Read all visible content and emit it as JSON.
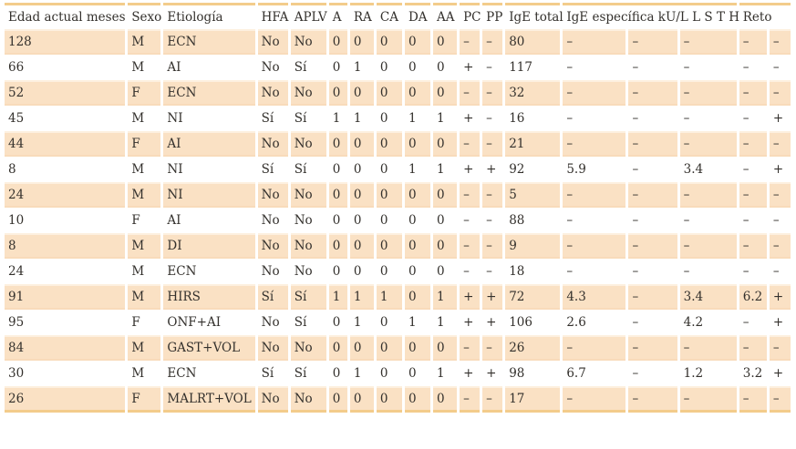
{
  "colors": {
    "background": "#ffffff",
    "text": "#33302c",
    "stripe": "#fae1c4",
    "stripe-border-top": "#fdf0df",
    "stripe-border-bottom": "#f8dbba",
    "table-border": "#f3cc8b"
  },
  "table": {
    "columns": [
      {
        "label": "Edad actual meses",
        "span": 1
      },
      {
        "label": "Sexo",
        "span": 1
      },
      {
        "label": "Etiología",
        "span": 1
      },
      {
        "label": "HFA",
        "span": 1
      },
      {
        "label": "APLV",
        "span": 1
      },
      {
        "label": "A",
        "span": 1
      },
      {
        "label": "RA",
        "span": 1
      },
      {
        "label": "CA",
        "span": 1
      },
      {
        "label": "DA",
        "span": 1
      },
      {
        "label": "AA",
        "span": 1
      },
      {
        "label": "PC",
        "span": 1
      },
      {
        "label": "PP",
        "span": 1
      },
      {
        "label": "IgE total",
        "span": 1
      },
      {
        "label": "IgE específica kU/L L S T H",
        "span": 3
      },
      {
        "label": "Reto",
        "span": 2
      }
    ],
    "rows": [
      [
        "128",
        "M",
        "ECN",
        "No",
        "No",
        "0",
        "0",
        "0",
        "0",
        "0",
        "–",
        "–",
        "80",
        "–",
        "–",
        "–",
        "–",
        "–"
      ],
      [
        "66",
        "M",
        "AI",
        "No",
        "Sí",
        "0",
        "1",
        "0",
        "0",
        "0",
        "+",
        "–",
        "117",
        "–",
        "–",
        "–",
        "–",
        "–"
      ],
      [
        "52",
        "F",
        "ECN",
        "No",
        "No",
        "0",
        "0",
        "0",
        "0",
        "0",
        "–",
        "–",
        "32",
        "–",
        "–",
        "–",
        "–",
        "–"
      ],
      [
        "45",
        "M",
        "NI",
        "Sí",
        "Sí",
        "1",
        "1",
        "0",
        "1",
        "1",
        "+",
        "–",
        "16",
        "–",
        "–",
        "–",
        "–",
        "+"
      ],
      [
        "44",
        "F",
        "AI",
        "No",
        "No",
        "0",
        "0",
        "0",
        "0",
        "0",
        "–",
        "–",
        "21",
        "–",
        "–",
        "–",
        "–",
        "–"
      ],
      [
        "8",
        "M",
        "NI",
        "Sí",
        "Sí",
        "0",
        "0",
        "0",
        "1",
        "1",
        "+",
        "+",
        "92",
        "5.9",
        "–",
        "3.4",
        "–",
        "+"
      ],
      [
        "24",
        "M",
        "NI",
        "No",
        "No",
        "0",
        "0",
        "0",
        "0",
        "0",
        "–",
        "–",
        "5",
        "–",
        "–",
        "–",
        "–",
        "–"
      ],
      [
        "10",
        "F",
        "AI",
        "No",
        "No",
        "0",
        "0",
        "0",
        "0",
        "0",
        "–",
        "–",
        "88",
        "–",
        "–",
        "–",
        "–",
        "–"
      ],
      [
        "8",
        "M",
        "DI",
        "No",
        "No",
        "0",
        "0",
        "0",
        "0",
        "0",
        "–",
        "–",
        "9",
        "–",
        "–",
        "–",
        "–",
        "–"
      ],
      [
        "24",
        "M",
        "ECN",
        "No",
        "No",
        "0",
        "0",
        "0",
        "0",
        "0",
        "–",
        "–",
        "18",
        "–",
        "–",
        "–",
        "–",
        "–"
      ],
      [
        "91",
        "M",
        "HIRS",
        "Sí",
        "Sí",
        "1",
        "1",
        "1",
        "0",
        "1",
        "+",
        "+",
        "72",
        "4.3",
        "–",
        "3.4",
        "6.2",
        "+"
      ],
      [
        "95",
        "F",
        "ONF+AI",
        "No",
        "Sí",
        "0",
        "1",
        "0",
        "1",
        "1",
        "+",
        "+",
        "106",
        "2.6",
        "–",
        "4.2",
        "–",
        "+"
      ],
      [
        "84",
        "M",
        "GAST+VOL",
        "No",
        "No",
        "0",
        "0",
        "0",
        "0",
        "0",
        "–",
        "–",
        "26",
        "–",
        "–",
        "–",
        "–",
        "–"
      ],
      [
        "30",
        "M",
        "ECN",
        "Sí",
        "Sí",
        "0",
        "1",
        "0",
        "0",
        "1",
        "+",
        "+",
        "98",
        "6.7",
        "–",
        "1.2",
        "3.2",
        "+"
      ],
      [
        "26",
        "F",
        "MALRT+VOL",
        "No",
        "No",
        "0",
        "0",
        "0",
        "0",
        "0",
        "–",
        "–",
        "17",
        "–",
        "–",
        "–",
        "–",
        "–"
      ]
    ]
  }
}
